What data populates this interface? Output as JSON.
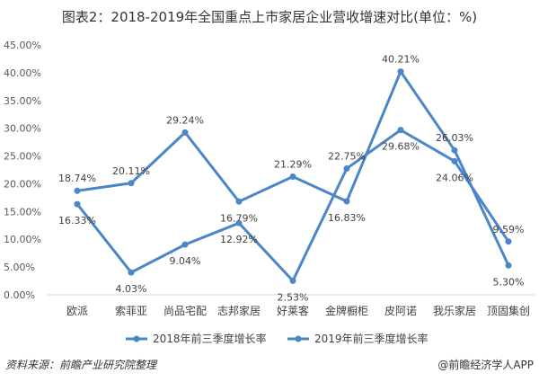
{
  "chart_data": {
    "type": "line",
    "title": "图表2：2018-2019年全国重点上市家居企业营收增速对比(单位：%)",
    "categories": [
      "欧派",
      "索菲亚",
      "尚品宅配",
      "志邦家居",
      "好莱客",
      "金牌橱柜",
      "皮阿诺",
      "我乐家居",
      "顶固集创"
    ],
    "series": [
      {
        "name": "2018年前三季度增长率",
        "values": [
          18.74,
          20.11,
          29.24,
          16.79,
          21.29,
          16.83,
          40.21,
          26.03,
          5.3
        ],
        "labels": [
          "18.74%",
          "20.11%",
          "29.24%",
          "16.79%",
          "21.29%",
          "16.83%",
          "40.21%",
          "26.03%",
          "5.30%"
        ]
      },
      {
        "name": "2019年前三季度增长率",
        "values": [
          16.33,
          4.03,
          9.04,
          12.92,
          2.53,
          22.75,
          29.68,
          24.06,
          9.59
        ],
        "labels": [
          "16.33%",
          "4.03%",
          "9.04%",
          "12.92%",
          "2.53%",
          "22.75%",
          "29.68%",
          "24.06%",
          "9.59%"
        ]
      }
    ],
    "yticks": [
      "0.00%",
      "5.00%",
      "10.00%",
      "15.00%",
      "20.00%",
      "25.00%",
      "30.00%",
      "35.00%",
      "40.00%",
      "45.00%"
    ],
    "ylim": [
      0,
      45
    ],
    "xlabel": "",
    "ylabel": "",
    "grid": false,
    "legend": "bottom",
    "color": "#4a86c8"
  },
  "footer": {
    "source": "资料来源：前瞻产业研究院整理",
    "brand": "@前瞻经济学人APP"
  }
}
